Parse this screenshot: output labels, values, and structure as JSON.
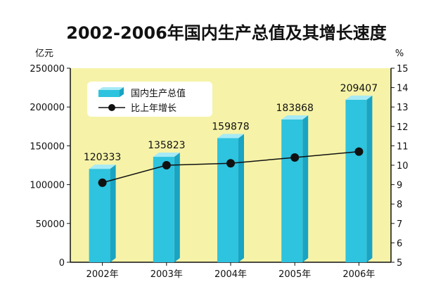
{
  "colors": {
    "plot_bg": "#f6f3a8",
    "bar_front": "#2ec3df",
    "bar_side": "#1aa3c2",
    "bar_top": "#a6eaf6",
    "line": "#111111",
    "marker": "#111111"
  },
  "chart_data": {
    "type": "bar",
    "title": "2002-2006年国内生产总值及其增长速度",
    "ylabel_left": "亿元",
    "ylabel_right": "%",
    "categories": [
      "2002年",
      "2003年",
      "2004年",
      "2005年",
      "2006年"
    ],
    "series": [
      {
        "name": "国内生产总值",
        "type": "bar",
        "axis": "left",
        "values": [
          120333,
          135823,
          159878,
          183868,
          209407
        ]
      },
      {
        "name": "比上年增长",
        "type": "line",
        "axis": "right",
        "values": [
          9.1,
          10.0,
          10.1,
          10.4,
          10.7
        ]
      }
    ],
    "data_labels": [
      "120333",
      "135823",
      "159878",
      "183868",
      "209407"
    ],
    "ylim_left": [
      0,
      250000
    ],
    "yticks_left": [
      "0",
      "50000",
      "100000",
      "150000",
      "200000",
      "250000"
    ],
    "ylim_right": [
      5,
      15
    ],
    "yticks_right": [
      "5",
      "6",
      "7",
      "8",
      "9",
      "10",
      "11",
      "12",
      "13",
      "14",
      "15"
    ],
    "legend_position": "top-left",
    "grid": false
  }
}
